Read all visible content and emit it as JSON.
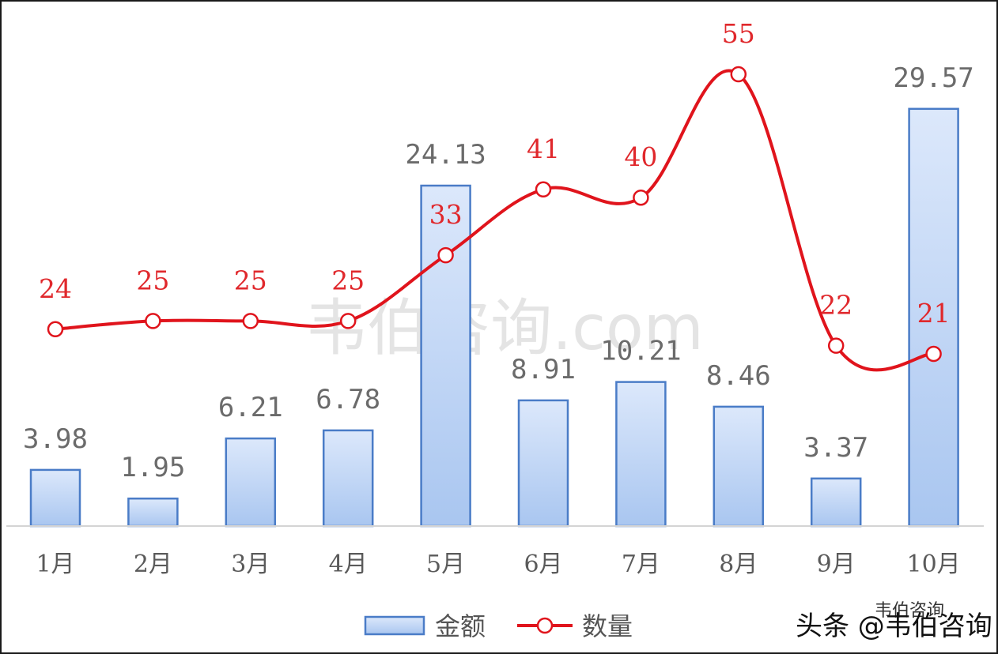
{
  "chart_data": {
    "type": "bar+line",
    "categories": [
      "1月",
      "2月",
      "3月",
      "4月",
      "5月",
      "6月",
      "7月",
      "8月",
      "9月",
      "10月"
    ],
    "series": [
      {
        "name": "金额",
        "type": "bar",
        "values": [
          3.98,
          1.95,
          6.21,
          6.78,
          24.13,
          8.91,
          10.21,
          8.46,
          3.37,
          29.57
        ],
        "labels": [
          "3.98",
          "1.95",
          "6.21",
          "6.78",
          "24.13",
          "8.91",
          "10.21",
          "8.46",
          "3.37",
          "29.57"
        ],
        "color": "#4a7cc7",
        "fill_top": "#dce8fb",
        "fill_bottom": "#a9c6f0"
      },
      {
        "name": "数量",
        "type": "line",
        "smooth": true,
        "values": [
          24,
          25,
          25,
          25,
          33,
          41,
          40,
          55,
          22,
          21
        ],
        "labels": [
          "24",
          "25",
          "25",
          "25",
          "33",
          "41",
          "40",
          "55",
          "22",
          "21"
        ],
        "color": "#e0141c"
      }
    ],
    "bar_ylim": [
      0,
      30.5
    ],
    "line_ylim": [
      0,
      55
    ],
    "grid": false,
    "legend": "bottom-center"
  },
  "watermark": {
    "text": "韦伯咨询.com"
  },
  "brand": {
    "text": "头条 @韦伯咨询",
    "secondary": "韦伯咨询"
  }
}
